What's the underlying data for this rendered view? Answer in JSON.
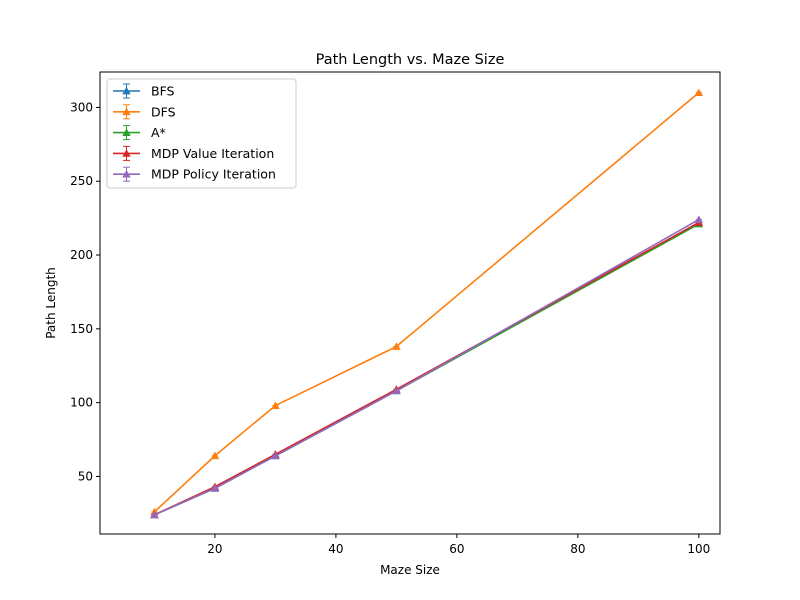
{
  "chart_data": {
    "type": "line",
    "title": "Path Length vs. Maze Size",
    "xlabel": "Maze Size",
    "ylabel": "Path Length",
    "xlim": [
      1.0,
      103.5
    ],
    "ylim": [
      11.0,
      324.0
    ],
    "xticks": [
      20,
      40,
      60,
      80,
      100
    ],
    "yticks": [
      50,
      100,
      150,
      200,
      250,
      300
    ],
    "x": [
      10,
      20,
      30,
      50,
      100
    ],
    "legend_position": "upper-left",
    "series": [
      {
        "name": "BFS",
        "color": "#1f77b4",
        "marker": "triangle",
        "values": [
          24,
          42,
          64,
          108,
          222
        ]
      },
      {
        "name": "DFS",
        "color": "#ff7f0e",
        "marker": "triangle",
        "values": [
          26,
          64,
          98,
          138,
          310
        ]
      },
      {
        "name": "A*",
        "color": "#2ca02c",
        "marker": "triangle",
        "values": [
          24,
          42,
          64,
          108,
          221
        ]
      },
      {
        "name": "MDP Value Iteration",
        "color": "#d62728",
        "marker": "triangle",
        "values": [
          24,
          43,
          65,
          109,
          222
        ]
      },
      {
        "name": "MDP Policy Iteration",
        "color": "#9467bd",
        "marker": "triangle",
        "values": [
          24,
          42,
          64,
          108,
          224
        ]
      }
    ]
  }
}
